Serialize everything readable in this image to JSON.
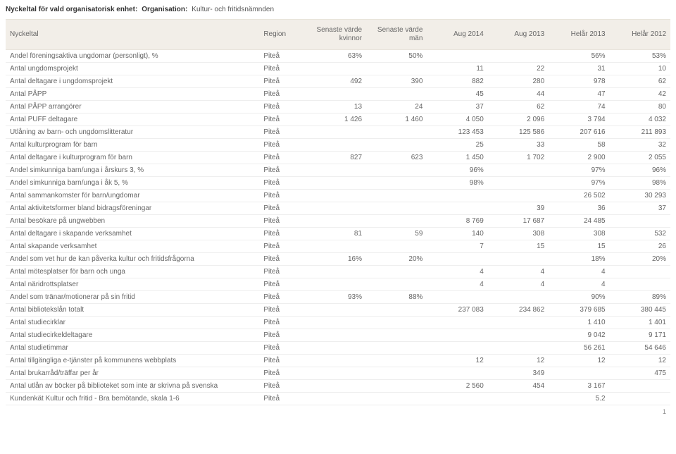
{
  "header": {
    "label": "Nyckeltal för vald organisatorisk enhet:",
    "org_label": "Organisation:",
    "org_value": "Kultur- och fritidsnämnden"
  },
  "columns": [
    "Nyckeltal",
    "Region",
    "Senaste värde kvinnor",
    "Senaste värde män",
    "Aug 2014",
    "Aug 2013",
    "Helår 2013",
    "Helår 2012"
  ],
  "rows": [
    {
      "label": "Andel föreningsaktiva ungdomar (personligt), %",
      "region": "Piteå",
      "vals": [
        "63%",
        "50%",
        "",
        "",
        "56%",
        "53%"
      ]
    },
    {
      "label": "Antal ungdomsprojekt",
      "region": "Piteå",
      "vals": [
        "",
        "",
        "11",
        "22",
        "31",
        "10"
      ]
    },
    {
      "label": "Antal deltagare i ungdomsprojekt",
      "region": "Piteå",
      "vals": [
        "492",
        "390",
        "882",
        "280",
        "978",
        "62"
      ]
    },
    {
      "label": "Antal PÅPP",
      "region": "Piteå",
      "vals": [
        "",
        "",
        "45",
        "44",
        "47",
        "42"
      ]
    },
    {
      "label": "Antal PÅPP arrangörer",
      "region": "Piteå",
      "vals": [
        "13",
        "24",
        "37",
        "62",
        "74",
        "80"
      ]
    },
    {
      "label": "Antal PUFF deltagare",
      "region": "Piteå",
      "vals": [
        "1 426",
        "1 460",
        "4 050",
        "2 096",
        "3 794",
        "4 032"
      ]
    },
    {
      "label": "Utlåning av barn- och ungdomslitteratur",
      "region": "Piteå",
      "vals": [
        "",
        "",
        "123 453",
        "125 586",
        "207 616",
        "211 893"
      ]
    },
    {
      "label": "Antal kulturprogram för barn",
      "region": "Piteå",
      "vals": [
        "",
        "",
        "25",
        "33",
        "58",
        "32"
      ]
    },
    {
      "label": "Antal deltagare i kulturprogram för barn",
      "region": "Piteå",
      "vals": [
        "827",
        "623",
        "1 450",
        "1 702",
        "2 900",
        "2 055"
      ]
    },
    {
      "label": "Andel simkunniga barn/unga i årskurs 3, %",
      "region": "Piteå",
      "vals": [
        "",
        "",
        "96%",
        "",
        "97%",
        "96%"
      ]
    },
    {
      "label": "Andel simkunniga barn/unga i åk 5, %",
      "region": "Piteå",
      "vals": [
        "",
        "",
        "98%",
        "",
        "97%",
        "98%"
      ]
    },
    {
      "label": "Antal sammankomster för barn/ungdomar",
      "region": "Piteå",
      "vals": [
        "",
        "",
        "",
        "",
        "26 502",
        "30 293"
      ]
    },
    {
      "label": "Antal aktivitetsformer bland bidragsföreningar",
      "region": "Piteå",
      "vals": [
        "",
        "",
        "",
        "39",
        "36",
        "37"
      ]
    },
    {
      "label": "Antal besökare på ungwebben",
      "region": "Piteå",
      "vals": [
        "",
        "",
        "8 769",
        "17 687",
        "24 485",
        ""
      ]
    },
    {
      "label": "Antal deltagare i skapande verksamhet",
      "region": "Piteå",
      "vals": [
        "81",
        "59",
        "140",
        "308",
        "308",
        "532"
      ]
    },
    {
      "label": "Antal skapande verksamhet",
      "region": "Piteå",
      "vals": [
        "",
        "",
        "7",
        "15",
        "15",
        "26"
      ]
    },
    {
      "label": "Andel som vet hur de kan påverka kultur och fritidsfrågorna",
      "region": "Piteå",
      "vals": [
        "16%",
        "20%",
        "",
        "",
        "18%",
        "20%"
      ]
    },
    {
      "label": "Antal mötesplatser för barn och unga",
      "region": "Piteå",
      "vals": [
        "",
        "",
        "4",
        "4",
        "4",
        ""
      ]
    },
    {
      "label": "Antal näridrottsplatser",
      "region": "Piteå",
      "vals": [
        "",
        "",
        "4",
        "4",
        "4",
        ""
      ]
    },
    {
      "label": "Andel som tränar/motionerar på sin fritid",
      "region": "Piteå",
      "vals": [
        "93%",
        "88%",
        "",
        "",
        "90%",
        "89%"
      ]
    },
    {
      "label": "Antal bibliotekslån totalt",
      "region": "Piteå",
      "vals": [
        "",
        "",
        "237 083",
        "234 862",
        "379 685",
        "380 445"
      ]
    },
    {
      "label": "Antal studiecirklar",
      "region": "Piteå",
      "vals": [
        "",
        "",
        "",
        "",
        "1 410",
        "1 401"
      ]
    },
    {
      "label": "Antal studiecirkeldeltagare",
      "region": "Piteå",
      "vals": [
        "",
        "",
        "",
        "",
        "9 042",
        "9 171"
      ]
    },
    {
      "label": "Antal studietimmar",
      "region": "Piteå",
      "vals": [
        "",
        "",
        "",
        "",
        "56 261",
        "54 646"
      ]
    },
    {
      "label": "Antal tillgängliga e-tjänster på kommunens webbplats",
      "region": "Piteå",
      "vals": [
        "",
        "",
        "12",
        "12",
        "12",
        "12"
      ]
    },
    {
      "label": "Antal brukarråd/träffar per år",
      "region": "Piteå",
      "vals": [
        "",
        "",
        "",
        "349",
        "",
        "475"
      ]
    },
    {
      "label": "Antal utlån av böcker på biblioteket som inte är skrivna på svenska",
      "region": "Piteå",
      "vals": [
        "",
        "",
        "2 560",
        "454",
        "3 167",
        ""
      ]
    },
    {
      "label": "Kundenkät Kultur och fritid - Bra bemötande, skala 1-6",
      "region": "Piteå",
      "vals": [
        "",
        "",
        "",
        "",
        "5.2",
        ""
      ]
    }
  ],
  "page_number": "1",
  "style": {
    "header_bg": "#f2eee8",
    "border_color": "#eee",
    "font_size": 10,
    "text_color": "#666"
  }
}
